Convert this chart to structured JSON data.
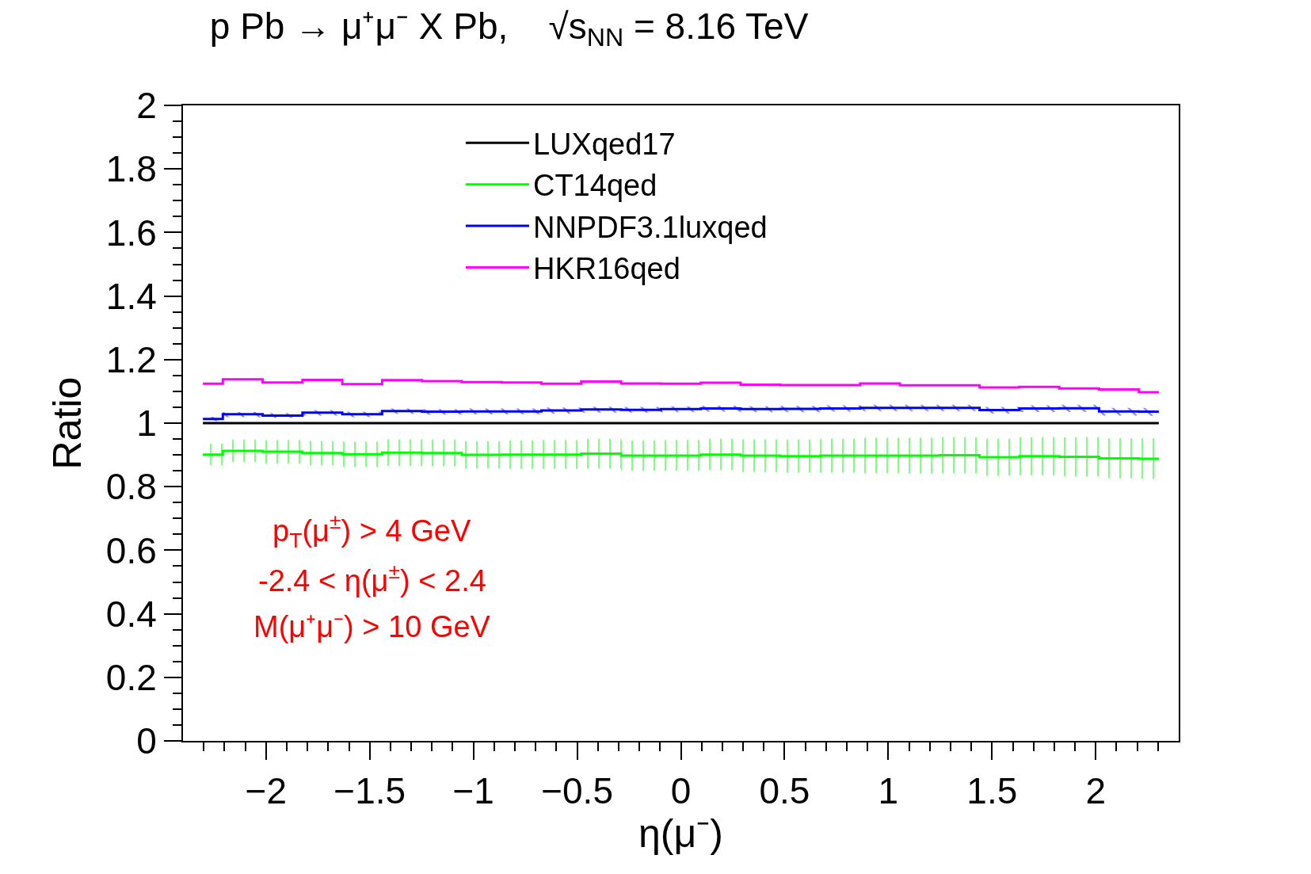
{
  "chart_data": {
    "type": "step",
    "title": "p Pb → μ⁺μ⁻ X Pb,    √s$_{NN}$ = 8.16 TeV",
    "xlabel": "η(μ⁻)",
    "ylabel": "Ratio",
    "x": [
      -2.304,
      -2.112,
      -1.92,
      -1.728,
      -1.536,
      -1.344,
      -1.152,
      -0.96,
      -0.768,
      -0.576,
      -0.384,
      -0.192,
      0,
      0.192,
      0.384,
      0.576,
      0.768,
      0.96,
      1.152,
      1.344,
      1.536,
      1.728,
      1.92,
      2.112,
      2.304
    ],
    "series": [
      {
        "name": "LUXqed17",
        "color": "#000000",
        "values": [
          1,
          1,
          1,
          1,
          1,
          1,
          1,
          1,
          1,
          1,
          1,
          1,
          1,
          1,
          1,
          1,
          1,
          1,
          1,
          1,
          1,
          1,
          1,
          1,
          1
        ]
      },
      {
        "name": "CT14qed",
        "color": "#00ff00",
        "values": [
          0.901,
          0.913,
          0.91,
          0.906,
          0.902,
          0.907,
          0.906,
          0.9,
          0.901,
          0.901,
          0.904,
          0.898,
          0.898,
          0.901,
          0.898,
          0.896,
          0.898,
          0.898,
          0.898,
          0.899,
          0.893,
          0.896,
          0.894,
          0.889,
          0.888
        ],
        "lower": [
          0.867,
          0.878,
          0.873,
          0.867,
          0.862,
          0.865,
          0.864,
          0.857,
          0.856,
          0.856,
          0.857,
          0.85,
          0.85,
          0.852,
          0.846,
          0.844,
          0.844,
          0.842,
          0.841,
          0.842,
          0.834,
          0.836,
          0.832,
          0.826,
          0.824
        ],
        "upper": [
          0.936,
          0.948,
          0.947,
          0.944,
          0.942,
          0.949,
          0.948,
          0.943,
          0.946,
          0.947,
          0.951,
          0.946,
          0.947,
          0.951,
          0.949,
          0.948,
          0.951,
          0.954,
          0.954,
          0.956,
          0.951,
          0.956,
          0.956,
          0.952,
          0.952
        ]
      },
      {
        "name": "NNPDF3.1luxqed",
        "color": "#0000ff",
        "values": [
          1.013,
          1.028,
          1.024,
          1.033,
          1.028,
          1.038,
          1.036,
          1.037,
          1.037,
          1.04,
          1.043,
          1.042,
          1.044,
          1.046,
          1.044,
          1.045,
          1.046,
          1.048,
          1.048,
          1.048,
          1.041,
          1.046,
          1.047,
          1.037,
          1.036
        ],
        "lower": [
          1.006,
          1.019,
          1.017,
          1.024,
          1.019,
          1.029,
          1.027,
          1.028,
          1.028,
          1.03,
          1.033,
          1.033,
          1.034,
          1.036,
          1.034,
          1.034,
          1.036,
          1.038,
          1.038,
          1.038,
          1.03,
          1.035,
          1.035,
          1.024,
          1.023
        ],
        "upper": [
          1.02,
          1.035,
          1.032,
          1.041,
          1.036,
          1.046,
          1.044,
          1.046,
          1.046,
          1.049,
          1.052,
          1.051,
          1.053,
          1.055,
          1.053,
          1.054,
          1.056,
          1.058,
          1.058,
          1.058,
          1.051,
          1.056,
          1.058,
          1.048,
          1.048
        ]
      },
      {
        "name": "HKR16qed",
        "color": "#ff00ff",
        "values": [
          1.124,
          1.138,
          1.128,
          1.136,
          1.123,
          1.135,
          1.132,
          1.129,
          1.128,
          1.124,
          1.131,
          1.125,
          1.124,
          1.127,
          1.121,
          1.12,
          1.12,
          1.125,
          1.119,
          1.119,
          1.112,
          1.114,
          1.109,
          1.106,
          1.097
        ]
      }
    ],
    "xlim": [
      -2.4,
      2.4
    ],
    "xticks": [
      {
        "value": -2,
        "label": "−2"
      },
      {
        "value": -1.5,
        "label": "−1.5"
      },
      {
        "value": -1,
        "label": "−1"
      },
      {
        "value": -0.5,
        "label": "−0.5"
      },
      0,
      0.5,
      1,
      1.5,
      2,
      {
        "value": -2.3,
        "label": null
      },
      {
        "value": -2.2,
        "label": null
      },
      {
        "value": -2.1,
        "label": null
      },
      {
        "value": -1.9,
        "label": null
      },
      {
        "value": -1.8,
        "label": null
      },
      {
        "value": -1.7,
        "label": null
      },
      {
        "value": -1.6,
        "label": null
      },
      {
        "value": -1.4,
        "label": null
      },
      {
        "value": -1.3,
        "label": null
      },
      {
        "value": -1.2,
        "label": null
      },
      {
        "value": -1.1,
        "label": null
      },
      {
        "value": -0.9,
        "label": null
      },
      {
        "value": -0.8,
        "label": null
      },
      {
        "value": -0.7,
        "label": null
      },
      {
        "value": -0.6,
        "label": null
      },
      {
        "value": -0.4,
        "label": null
      },
      {
        "value": -0.3,
        "label": null
      },
      {
        "value": -0.2,
        "label": null
      },
      {
        "value": -0.1,
        "label": null
      },
      {
        "value": 0.1,
        "label": null
      },
      {
        "value": 0.2,
        "label": null
      },
      {
        "value": 0.3,
        "label": null
      },
      {
        "value": 0.4,
        "label": null
      },
      {
        "value": 0.6,
        "label": null
      },
      {
        "value": 0.7,
        "label": null
      },
      {
        "value": 0.8,
        "label": null
      },
      {
        "value": 0.9,
        "label": null
      },
      {
        "value": 1.1,
        "label": null
      },
      {
        "value": 1.2,
        "label": null
      },
      {
        "value": 1.3,
        "label": null
      },
      {
        "value": 1.4,
        "label": null
      },
      {
        "value": 1.6,
        "label": null
      },
      {
        "value": 1.7,
        "label": null
      },
      {
        "value": 1.8,
        "label": null
      },
      {
        "value": 1.9,
        "label": null
      },
      {
        "value": 2.1,
        "label": null
      },
      {
        "value": 2.2,
        "label": null
      },
      {
        "value": 2.3,
        "label": null
      }
    ],
    "ylim": [
      0,
      2
    ],
    "yticks": [
      0,
      0.2,
      0.4,
      0.6,
      0.8,
      1,
      1.2,
      1.4,
      1.6,
      1.8,
      2,
      {
        "value": 0.05,
        "label": null
      },
      {
        "value": 0.1,
        "label": null
      },
      {
        "value": 0.15,
        "label": null
      },
      {
        "value": 0.25,
        "label": null
      },
      {
        "value": 0.3,
        "label": null
      },
      {
        "value": 0.35,
        "label": null
      },
      {
        "value": 0.45,
        "label": null
      },
      {
        "value": 0.5,
        "label": null
      },
      {
        "value": 0.55,
        "label": null
      },
      {
        "value": 0.65,
        "label": null
      },
      {
        "value": 0.7,
        "label": null
      },
      {
        "value": 0.75,
        "label": null
      },
      {
        "value": 0.85,
        "label": null
      },
      {
        "value": 0.9,
        "label": null
      },
      {
        "value": 0.95,
        "label": null
      },
      {
        "value": 1.05,
        "label": null
      },
      {
        "value": 1.1,
        "label": null
      },
      {
        "value": 1.15,
        "label": null
      },
      {
        "value": 1.25,
        "label": null
      },
      {
        "value": 1.3,
        "label": null
      },
      {
        "value": 1.35,
        "label": null
      },
      {
        "value": 1.45,
        "label": null
      },
      {
        "value": 1.5,
        "label": null
      },
      {
        "value": 1.55,
        "label": null
      },
      {
        "value": 1.65,
        "label": null
      },
      {
        "value": 1.7,
        "label": null
      },
      {
        "value": 1.75,
        "label": null
      },
      {
        "value": 1.85,
        "label": null
      },
      {
        "value": 1.9,
        "label": null
      },
      {
        "value": 1.95,
        "label": null
      }
    ],
    "annotations": [
      "p$_{T}$(μ$^{±}$) > 4 GeV",
      "-2.4 < η(μ$^{±}$) < 2.4",
      "M(μ⁺μ⁻) > 10 GeV"
    ],
    "legend": "top",
    "marker": "none",
    "line_style": "solid"
  }
}
